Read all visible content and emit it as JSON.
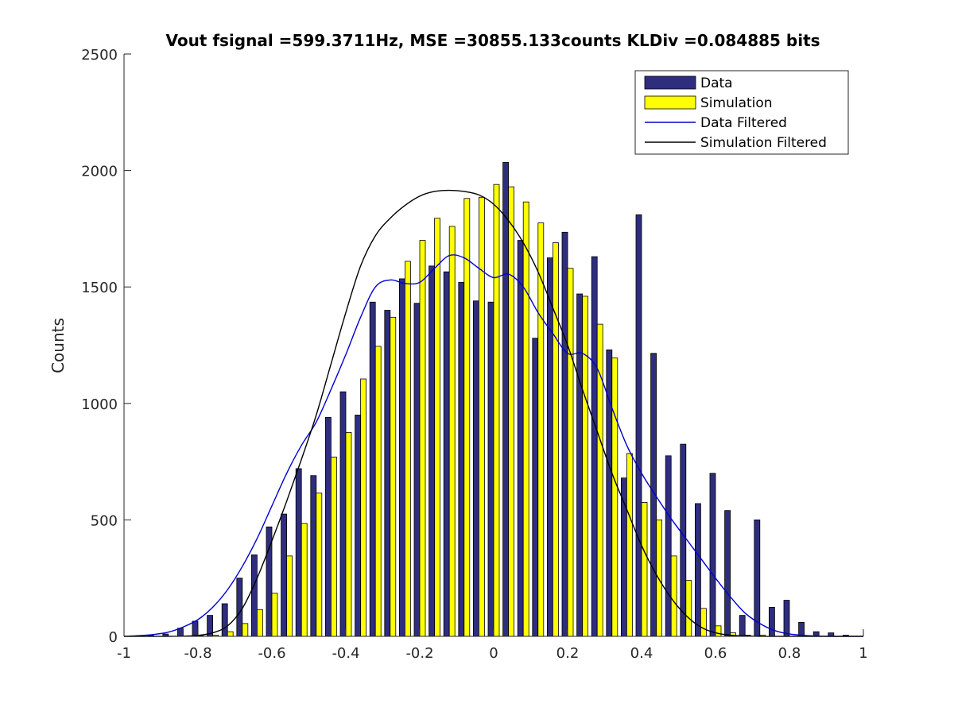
{
  "chart_data": {
    "type": "bar",
    "title": "Vout fsignal =599.3711Hz, MSE =30855.133counts KLDiv =0.084885 bits",
    "xlabel": "",
    "ylabel": "Counts",
    "xlim": [
      -1,
      1
    ],
    "ylim": [
      0,
      2500
    ],
    "x_ticks": [
      -1,
      -0.8,
      -0.6,
      -0.4,
      -0.2,
      0,
      0.2,
      0.4,
      0.6,
      0.8,
      1
    ],
    "x_tick_labels": [
      "-1",
      "-0.8",
      "-0.6",
      "-0.4",
      "-0.2",
      "0",
      "0.2",
      "0.4",
      "0.6",
      "0.8",
      "1"
    ],
    "y_ticks": [
      0,
      500,
      1000,
      1500,
      2000,
      2500
    ],
    "y_tick_labels": [
      "0",
      "500",
      "1000",
      "1500",
      "2000",
      "2500"
    ],
    "grid": false,
    "legend_position": "top-right",
    "colors": {
      "data": "#2f2d7e",
      "simulation": "#ffff00",
      "data_filtered": "#0000d0",
      "simulation_filtered": "#000000"
    },
    "x": [
      -0.96,
      -0.92,
      -0.88,
      -0.84,
      -0.8,
      -0.76,
      -0.72,
      -0.68,
      -0.64,
      -0.6,
      -0.56,
      -0.52,
      -0.48,
      -0.44,
      -0.4,
      -0.36,
      -0.32,
      -0.28,
      -0.24,
      -0.2,
      -0.16,
      -0.12,
      -0.08,
      -0.04,
      0.0,
      0.04,
      0.08,
      0.12,
      0.16,
      0.2,
      0.24,
      0.28,
      0.32,
      0.36,
      0.4,
      0.44,
      0.48,
      0.52,
      0.56,
      0.6,
      0.64,
      0.68,
      0.72,
      0.76,
      0.8,
      0.84,
      0.88,
      0.92,
      0.96
    ],
    "series": [
      {
        "name": "Data",
        "kind": "bar",
        "values": [
          2,
          5,
          10,
          35,
          65,
          90,
          140,
          250,
          350,
          470,
          525,
          720,
          690,
          940,
          1050,
          950,
          1435,
          1400,
          1535,
          1430,
          1590,
          1565,
          1520,
          1440,
          1435,
          2035,
          1700,
          1280,
          1625,
          1735,
          1470,
          1630,
          1230,
          680,
          1810,
          1215,
          775,
          825,
          570,
          700,
          540,
          90,
          500,
          125,
          155,
          60,
          20,
          15,
          5
        ]
      },
      {
        "name": "Simulation",
        "kind": "bar",
        "values": [
          0,
          0,
          0,
          0,
          2,
          5,
          20,
          55,
          115,
          185,
          345,
          485,
          615,
          770,
          875,
          1105,
          1245,
          1370,
          1610,
          1700,
          1795,
          1760,
          1880,
          1885,
          1940,
          1930,
          1865,
          1775,
          1690,
          1580,
          1460,
          1340,
          1195,
          785,
          575,
          500,
          345,
          240,
          120,
          45,
          15,
          5,
          5,
          0,
          0,
          0,
          0,
          0,
          0
        ]
      },
      {
        "name": "Data Filtered",
        "kind": "line",
        "values": [
          3,
          8,
          18,
          40,
          72,
          125,
          200,
          300,
          420,
          560,
          700,
          820,
          920,
          1060,
          1210,
          1370,
          1500,
          1530,
          1515,
          1520,
          1580,
          1635,
          1625,
          1580,
          1540,
          1555,
          1500,
          1390,
          1300,
          1215,
          1215,
          1150,
          980,
          820,
          700,
          600,
          505,
          420,
          335,
          250,
          170,
          100,
          55,
          25,
          10,
          4,
          1,
          0,
          0
        ]
      },
      {
        "name": "Simulation Filtered",
        "kind": "line",
        "values": [
          0,
          0,
          0,
          1,
          4,
          15,
          45,
          120,
          250,
          410,
          580,
          760,
          950,
          1170,
          1390,
          1590,
          1720,
          1795,
          1850,
          1890,
          1910,
          1915,
          1910,
          1895,
          1855,
          1785,
          1690,
          1565,
          1410,
          1250,
          1060,
          880,
          700,
          545,
          390,
          265,
          165,
          90,
          40,
          15,
          5,
          2,
          0,
          0,
          0,
          0,
          0,
          0,
          0
        ]
      }
    ]
  }
}
